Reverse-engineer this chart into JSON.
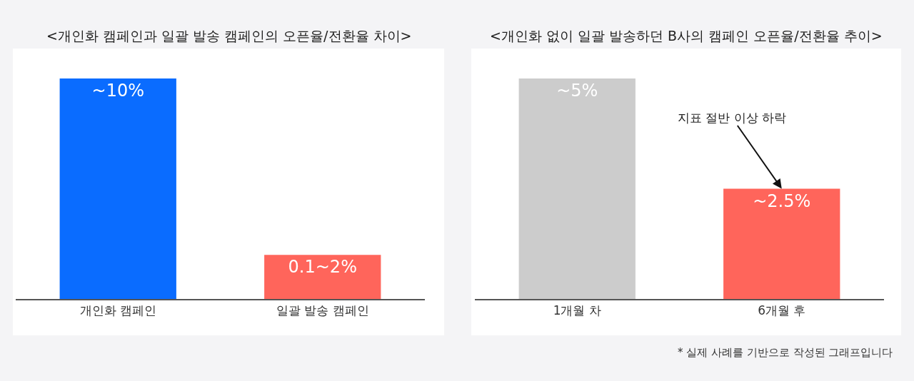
{
  "chart_data": [
    {
      "type": "bar",
      "tick_labels": "x",
      "title": "<개인화 캠페인과 일괄 발송 캠페인의 오픈율/전환율 차이>",
      "categories": [
        "개인화 캠페인",
        "일괄 발송 캠페인"
      ],
      "values": [
        10,
        2
      ],
      "colors": [
        "#0a6cff",
        "#ff655b"
      ],
      "value_labels": [
        "~10%",
        "0.1~2%"
      ]
    },
    {
      "type": "bar",
      "tick_labels": "x",
      "title": "<개인화 없이 일괄 발송하던 B사의 캠페인 오픈율/전환율 추이>",
      "categories": [
        "1개월 차",
        "6개월 후"
      ],
      "values": [
        5,
        2.5
      ],
      "colors": [
        "#cccccc",
        "#ff655b"
      ],
      "value_labels": [
        "~5%",
        "~2.5%"
      ],
      "annotations": [
        {
          "text": "지표 절반 이상 하락",
          "x": "6개월 후",
          "y": 2.5
        },
        "* 실제 사례를 기반으로 작성된 그래프입니다"
      ]
    }
  ]
}
